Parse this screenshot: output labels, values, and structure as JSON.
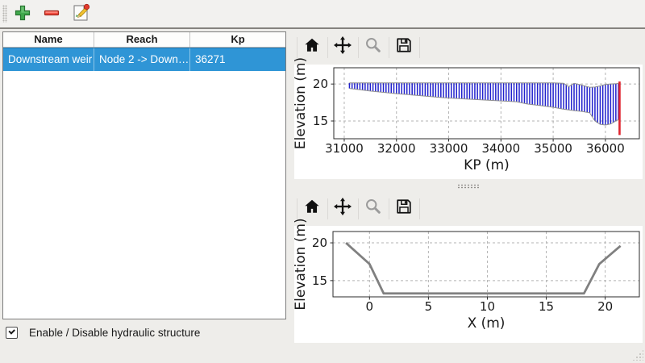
{
  "window": {
    "background": "#eeedea",
    "toolbar_background": "#f2f1ef"
  },
  "toolbar": {
    "buttons": [
      {
        "name": "add",
        "icon": "plus-icon",
        "color": "#41a84d"
      },
      {
        "name": "remove",
        "icon": "minus-icon",
        "color": "#f14f43"
      },
      {
        "name": "edit",
        "icon": "edit-icon",
        "color": "#f2c230"
      }
    ]
  },
  "table": {
    "columns": [
      "Name",
      "Reach",
      "Kp"
    ],
    "rows": [
      {
        "name": "Downstream weir",
        "reach": "Node 2 -> Down…",
        "kp": "36271",
        "selected": true
      }
    ],
    "selection_color": "#2f95d6"
  },
  "checkbox": {
    "label": "Enable / Disable hydraulic structure",
    "checked": true
  },
  "plot_toolbars": {
    "icons": [
      "home-icon",
      "pan-icon",
      "zoom-icon",
      "save-icon"
    ],
    "zoom_disabled": true
  },
  "chart_data": [
    {
      "type": "area",
      "title": "",
      "xlabel": "KP (m)",
      "ylabel": "Elevation (m)",
      "xlim": [
        30800,
        36650
      ],
      "ylim": [
        12.6,
        22.2
      ],
      "xticks": [
        31000,
        32000,
        33000,
        34000,
        35000,
        36000
      ],
      "yticks": [
        15,
        20
      ],
      "grid": true,
      "hatch_color": "#2121cd",
      "hatch_step": 50,
      "edge_color": "#909090",
      "profile": [
        [
          31100,
          20.15,
          19.4
        ],
        [
          31500,
          20.15,
          19.05
        ],
        [
          32000,
          20.15,
          18.7
        ],
        [
          32500,
          20.15,
          18.4
        ],
        [
          32900,
          20.15,
          18.15
        ],
        [
          33400,
          20.15,
          17.95
        ],
        [
          33900,
          20.15,
          17.75
        ],
        [
          34300,
          20.15,
          17.6
        ],
        [
          34500,
          20.15,
          17.3
        ],
        [
          34800,
          20.15,
          17.05
        ],
        [
          35000,
          20.15,
          16.85
        ],
        [
          35200,
          20.1,
          16.6
        ],
        [
          35300,
          19.65,
          16.5
        ],
        [
          35400,
          20.1,
          16.4
        ],
        [
          35550,
          19.85,
          16.3
        ],
        [
          35700,
          19.55,
          16.1
        ],
        [
          35800,
          19.6,
          15.0
        ],
        [
          35900,
          19.75,
          14.55
        ],
        [
          36000,
          19.95,
          14.45
        ],
        [
          36100,
          20.0,
          14.6
        ],
        [
          36200,
          20.05,
          15.0
        ],
        [
          36280,
          20.1,
          15.3
        ]
      ],
      "marker": {
        "x": 36271,
        "y0": 13.1,
        "y1": 20.35,
        "color": "#e0242e"
      }
    },
    {
      "type": "line",
      "title": "",
      "xlabel": "X (m)",
      "ylabel": "Elevation (m)",
      "xlim": [
        -3.1,
        22.9
      ],
      "ylim": [
        12.85,
        21.5
      ],
      "xticks": [
        0,
        5,
        10,
        15,
        20
      ],
      "yticks": [
        15,
        20
      ],
      "grid": true,
      "line_color": "#808080",
      "line_width": 2.8,
      "points": [
        [
          -2,
          20
        ],
        [
          0,
          17.2
        ],
        [
          1.2,
          13.3
        ],
        [
          18.2,
          13.3
        ],
        [
          19.5,
          17.2
        ],
        [
          21.3,
          19.6
        ]
      ]
    }
  ]
}
